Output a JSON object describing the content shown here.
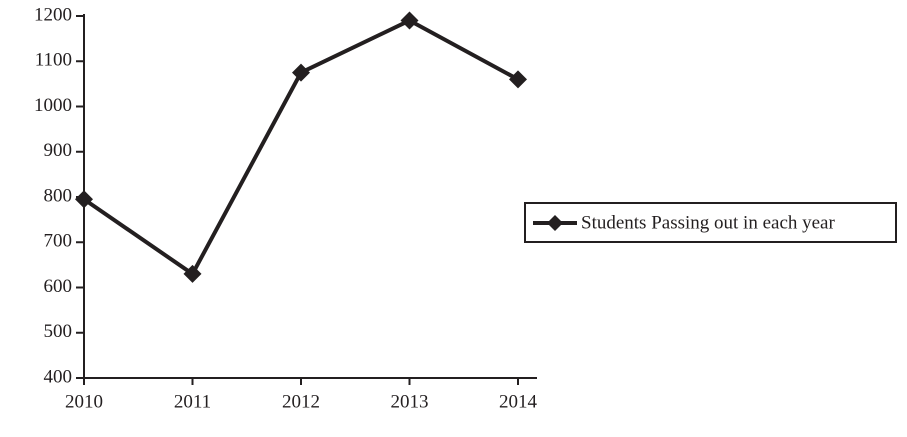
{
  "chart_data": {
    "type": "line",
    "categories": [
      "2010",
      "2011",
      "2012",
      "2013",
      "2014"
    ],
    "series": [
      {
        "name": "Students Passing out in each year",
        "color": "#231f20",
        "values": [
          795,
          630,
          1075,
          1190,
          1060
        ]
      }
    ],
    "ylim": [
      400,
      1200
    ],
    "yticks": [
      400,
      500,
      600,
      700,
      800,
      900,
      1000,
      1100,
      1200
    ],
    "grid": false,
    "legend": "right"
  }
}
